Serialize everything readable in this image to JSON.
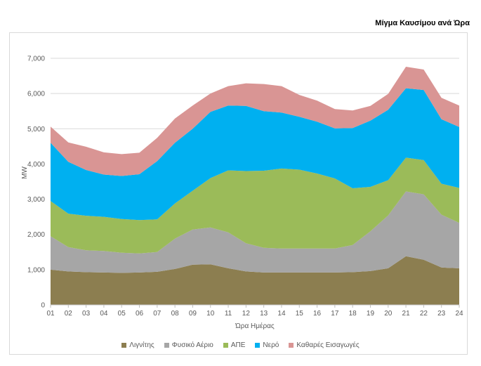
{
  "title": "Μίγμα Καυσίμου ανά Ώρα",
  "chart_data": {
    "type": "area",
    "stacked": true,
    "xlabel": "Ώρα Ημέρας",
    "ylabel": "MW",
    "ylim": [
      0,
      7000
    ],
    "yticks": [
      "0",
      "1,000",
      "2,000",
      "3,000",
      "4,000",
      "5,000",
      "6,000",
      "7,000"
    ],
    "categories": [
      "01",
      "02",
      "03",
      "04",
      "05",
      "06",
      "07",
      "08",
      "09",
      "10",
      "11",
      "12",
      "13",
      "14",
      "15",
      "16",
      "17",
      "18",
      "19",
      "20",
      "21",
      "22",
      "23",
      "24"
    ],
    "grid": true,
    "legend_position": "bottom",
    "series": [
      {
        "name": "Λιγνίτης",
        "color": "#8c7e50",
        "values": [
          1000,
          950,
          930,
          920,
          910,
          920,
          940,
          1020,
          1140,
          1150,
          1040,
          950,
          920,
          920,
          920,
          920,
          920,
          930,
          960,
          1040,
          1380,
          1280,
          1060,
          1040
        ]
      },
      {
        "name": "Φυσικό Αέριο",
        "color": "#a6a6a6",
        "values": [
          950,
          690,
          620,
          610,
          570,
          540,
          560,
          860,
          1000,
          1050,
          1020,
          800,
          700,
          680,
          680,
          680,
          680,
          770,
          1130,
          1500,
          1840,
          1860,
          1500,
          1290
        ]
      },
      {
        "name": "ΑΠΕ",
        "color": "#9bbb59",
        "values": [
          1000,
          950,
          980,
          970,
          960,
          950,
          930,
          1000,
          1100,
          1400,
          1760,
          2050,
          2190,
          2270,
          2240,
          2130,
          1990,
          1610,
          1260,
          1000,
          960,
          970,
          880,
          990
        ]
      },
      {
        "name": "Νερό",
        "color": "#00b0f0",
        "values": [
          1650,
          1470,
          1300,
          1200,
          1220,
          1300,
          1650,
          1720,
          1760,
          1880,
          1840,
          1850,
          1690,
          1590,
          1500,
          1470,
          1420,
          1710,
          1880,
          2000,
          1970,
          1990,
          1830,
          1730
        ]
      },
      {
        "name": "Καθαρές Εισαγωγές",
        "color": "#d99594",
        "values": [
          460,
          550,
          660,
          630,
          620,
          610,
          660,
          690,
          660,
          520,
          550,
          640,
          770,
          750,
          620,
          600,
          550,
          500,
          420,
          450,
          610,
          580,
          610,
          610
        ]
      }
    ]
  }
}
